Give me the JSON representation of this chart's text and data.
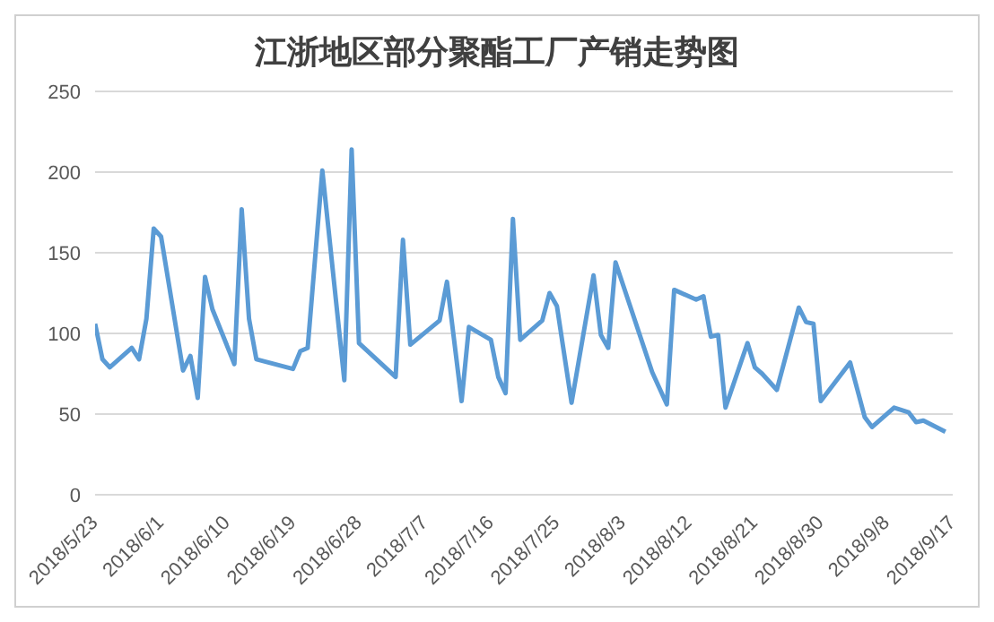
{
  "chart_data": {
    "type": "line",
    "title": "江浙地区部分聚酯工厂产销走势图",
    "x": [
      "2018-05-23",
      "2018-05-24",
      "2018-05-25",
      "2018-05-28",
      "2018-05-29",
      "2018-05-30",
      "2018-05-31",
      "2018-06-01",
      "2018-06-04",
      "2018-06-05",
      "2018-06-06",
      "2018-06-07",
      "2018-06-08",
      "2018-06-11",
      "2018-06-12",
      "2018-06-13",
      "2018-06-14",
      "2018-06-19",
      "2018-06-20",
      "2018-06-21",
      "2018-06-23",
      "2018-06-26",
      "2018-06-27",
      "2018-06-28",
      "2018-07-03",
      "2018-07-04",
      "2018-07-05",
      "2018-07-09",
      "2018-07-10",
      "2018-07-12",
      "2018-07-13",
      "2018-07-16",
      "2018-07-17",
      "2018-07-18",
      "2018-07-19",
      "2018-07-20",
      "2018-07-23",
      "2018-07-24",
      "2018-07-25",
      "2018-07-27",
      "2018-07-30",
      "2018-07-31",
      "2018-08-01",
      "2018-08-02",
      "2018-08-07",
      "2018-08-09",
      "2018-08-10",
      "2018-08-13",
      "2018-08-14",
      "2018-08-15",
      "2018-08-16",
      "2018-08-17",
      "2018-08-20",
      "2018-08-21",
      "2018-08-22",
      "2018-08-24",
      "2018-08-27",
      "2018-08-28",
      "2018-08-29",
      "2018-08-30",
      "2018-09-03",
      "2018-09-05",
      "2018-09-06",
      "2018-09-09",
      "2018-09-11",
      "2018-09-12",
      "2018-09-13",
      "2018-09-16"
    ],
    "series": [
      {
        "color": "#5b9bd5",
        "values": [
          106,
          84,
          79,
          91,
          84,
          109,
          165,
          160,
          77,
          86,
          60,
          135,
          115,
          81,
          177,
          109,
          84,
          78,
          89,
          91,
          201,
          71,
          214,
          94,
          73,
          158,
          93,
          108,
          132,
          58,
          104,
          96,
          73,
          63,
          171,
          96,
          108,
          125,
          117,
          57,
          136,
          99,
          91,
          144,
          76,
          56,
          127,
          121,
          123,
          98,
          99,
          54,
          94,
          79,
          75,
          65,
          116,
          107,
          106,
          58,
          82,
          48,
          42,
          54,
          51,
          45,
          46,
          39
        ]
      }
    ],
    "xlim": [
      "2018-05-23",
      "2018-09-17"
    ],
    "xticks": [
      {
        "value": "2018-05-23",
        "label": "2018/5/23"
      },
      {
        "value": "2018-06-01",
        "label": "2018/6/1"
      },
      {
        "value": "2018-06-10",
        "label": "2018/6/10"
      },
      {
        "value": "2018-06-19",
        "label": "2018/6/19"
      },
      {
        "value": "2018-06-28",
        "label": "2018/6/28"
      },
      {
        "value": "2018-07-07",
        "label": "2018/7/7"
      },
      {
        "value": "2018-07-16",
        "label": "2018/7/16"
      },
      {
        "value": "2018-07-25",
        "label": "2018/7/25"
      },
      {
        "value": "2018-08-03",
        "label": "2018/8/3"
      },
      {
        "value": "2018-08-12",
        "label": "2018/8/12"
      },
      {
        "value": "2018-08-21",
        "label": "2018/8/21"
      },
      {
        "value": "2018-08-30",
        "label": "2018/8/30"
      },
      {
        "value": "2018-09-08",
        "label": "2018/9/8"
      },
      {
        "value": "2018-09-17",
        "label": "2018/9/17"
      }
    ],
    "ylim": [
      0,
      250
    ],
    "yticks": [
      0,
      50,
      100,
      150,
      200,
      250
    ],
    "grid": "y",
    "marker": "none",
    "line_style": "solid"
  }
}
